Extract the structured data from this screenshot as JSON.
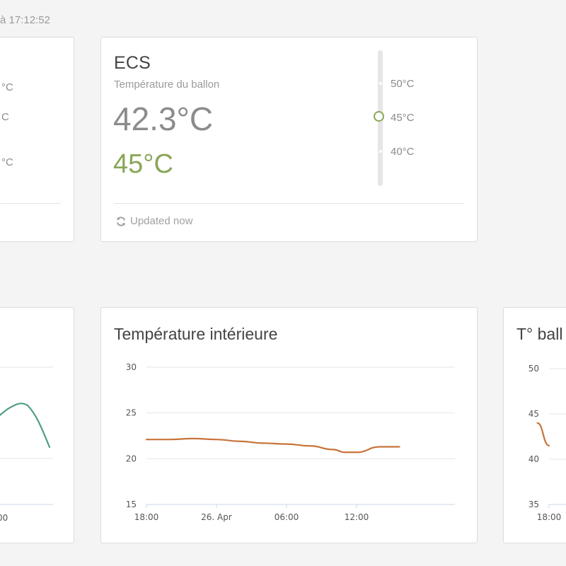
{
  "header": {
    "status_text": "à 17:12:52"
  },
  "left_top_card": {
    "labels": [
      "°C",
      "C",
      "°C"
    ]
  },
  "ecs_card": {
    "title": "ECS",
    "subtitle": "Température du ballon",
    "current_temperature": "42.3°C",
    "setpoint": "45°C",
    "setpoint_value": 45,
    "slider": {
      "options": [
        "50°C",
        "45°C",
        "40°C"
      ],
      "selected": "45°C"
    },
    "updated_text": "Updated now",
    "updated_icon": "refresh-icon",
    "accent_color": "#8aa657"
  },
  "left_bottom_card": {
    "x_tick": "00",
    "series_color": "#4e9f80"
  },
  "interior_card": {
    "title": "Température intérieure"
  },
  "ballon_card": {
    "title": "T° ball"
  },
  "chart_data": [
    {
      "type": "line",
      "title": "Température intérieure",
      "x_ticks": [
        "18:00",
        "26. Apr",
        "06:00",
        "12:00"
      ],
      "y_ticks": [
        30,
        25,
        20,
        15
      ],
      "ylim": [
        15,
        30
      ],
      "grid": true,
      "series": [
        {
          "color": "#c8733a",
          "x": [
            "18:00",
            "20:00",
            "22:00",
            "00:00",
            "02:00",
            "04:00",
            "06:00",
            "08:00",
            "10:00",
            "11:00",
            "12:00",
            "14:00",
            "15:40"
          ],
          "values": [
            22.1,
            22.1,
            22.2,
            22.1,
            21.9,
            21.7,
            21.6,
            21.4,
            21.0,
            20.7,
            20.7,
            21.3,
            21.3
          ]
        }
      ]
    },
    {
      "type": "line",
      "title": "T° ball",
      "x_ticks": [
        "18:00"
      ],
      "y_ticks": [
        50,
        45,
        40,
        35
      ],
      "ylim": [
        35,
        50
      ],
      "grid": true,
      "series": [
        {
          "color": "#c8733a",
          "x": [
            "17:00",
            "18:00"
          ],
          "values": [
            44,
            41.5
          ]
        }
      ]
    }
  ]
}
